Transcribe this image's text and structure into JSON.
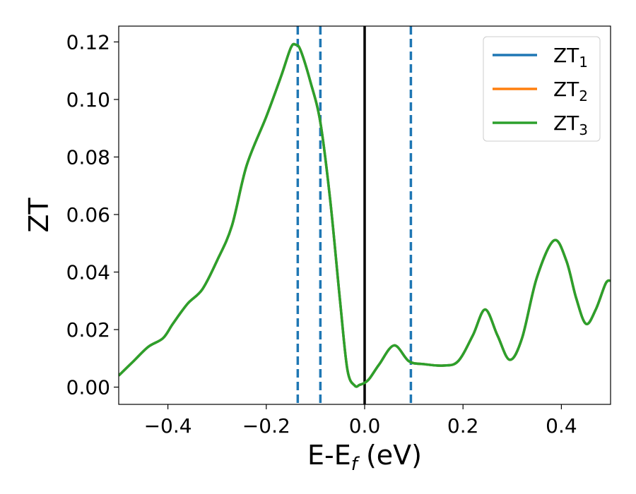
{
  "chart_data": {
    "type": "line",
    "xlabel": "E-E",
    "xlabel_sub": "f",
    "xlabel_unit": " (eV)",
    "ylabel": "ZT",
    "xlim": [
      -0.5,
      0.5
    ],
    "ylim": [
      -0.006,
      0.1255
    ],
    "xticks": [
      -0.4,
      -0.2,
      0.0,
      0.2,
      0.4
    ],
    "xtick_labels": [
      "−0.4",
      "−0.2",
      "0.0",
      "0.2",
      "0.4"
    ],
    "yticks": [
      0.0,
      0.02,
      0.04,
      0.06,
      0.08,
      0.1,
      0.12
    ],
    "ytick_labels": [
      "0.00",
      "0.02",
      "0.04",
      "0.06",
      "0.08",
      "0.10",
      "0.12"
    ],
    "grid": false,
    "legend_position": "top-right",
    "series": [
      {
        "name": "ZT",
        "name_sub": "1",
        "color": "#1f77b4",
        "x": [
          -0.5,
          -0.47,
          -0.44,
          -0.41,
          -0.39,
          -0.36,
          -0.33,
          -0.3,
          -0.27,
          -0.24,
          -0.2,
          -0.17,
          -0.15,
          -0.14,
          -0.13,
          -0.11,
          -0.09,
          -0.07,
          -0.05,
          -0.035,
          -0.02,
          -0.01,
          0.0,
          0.01,
          0.03,
          0.06,
          0.09,
          0.12,
          0.16,
          0.19,
          0.22,
          0.245,
          0.27,
          0.295,
          0.32,
          0.35,
          0.385,
          0.41,
          0.43,
          0.45,
          0.47,
          0.49,
          0.5
        ],
        "y": [
          0.004,
          0.009,
          0.014,
          0.017,
          0.022,
          0.029,
          0.034,
          0.044,
          0.056,
          0.077,
          0.094,
          0.108,
          0.118,
          0.119,
          0.117,
          0.106,
          0.092,
          0.065,
          0.03,
          0.006,
          0.0005,
          0.0008,
          0.0015,
          0.003,
          0.008,
          0.0145,
          0.009,
          0.008,
          0.0075,
          0.009,
          0.018,
          0.027,
          0.018,
          0.0095,
          0.017,
          0.038,
          0.051,
          0.044,
          0.031,
          0.022,
          0.027,
          0.036,
          0.037
        ]
      },
      {
        "name": "ZT",
        "name_sub": "2",
        "color": "#ff7f0e",
        "x": [
          -0.5,
          -0.47,
          -0.44,
          -0.41,
          -0.39,
          -0.36,
          -0.33,
          -0.3,
          -0.27,
          -0.24,
          -0.2,
          -0.17,
          -0.15,
          -0.14,
          -0.13,
          -0.11,
          -0.09,
          -0.07,
          -0.05,
          -0.035,
          -0.02,
          -0.01,
          0.0,
          0.01,
          0.03,
          0.06,
          0.09,
          0.12,
          0.16,
          0.19,
          0.22,
          0.245,
          0.27,
          0.295,
          0.32,
          0.35,
          0.385,
          0.41,
          0.43,
          0.45,
          0.47,
          0.49,
          0.5
        ],
        "y": [
          0.004,
          0.009,
          0.014,
          0.017,
          0.022,
          0.029,
          0.034,
          0.044,
          0.056,
          0.077,
          0.094,
          0.108,
          0.118,
          0.119,
          0.117,
          0.106,
          0.092,
          0.065,
          0.03,
          0.006,
          0.0005,
          0.0008,
          0.0015,
          0.003,
          0.008,
          0.0145,
          0.009,
          0.008,
          0.0075,
          0.009,
          0.018,
          0.027,
          0.018,
          0.0095,
          0.017,
          0.038,
          0.051,
          0.044,
          0.031,
          0.022,
          0.027,
          0.036,
          0.037
        ]
      },
      {
        "name": "ZT",
        "name_sub": "3",
        "color": "#2ca02c",
        "x": [
          -0.5,
          -0.47,
          -0.44,
          -0.41,
          -0.39,
          -0.36,
          -0.33,
          -0.3,
          -0.27,
          -0.24,
          -0.2,
          -0.17,
          -0.15,
          -0.14,
          -0.13,
          -0.11,
          -0.09,
          -0.07,
          -0.05,
          -0.035,
          -0.02,
          -0.01,
          0.0,
          0.01,
          0.03,
          0.06,
          0.09,
          0.12,
          0.16,
          0.19,
          0.22,
          0.245,
          0.27,
          0.295,
          0.32,
          0.35,
          0.385,
          0.41,
          0.43,
          0.45,
          0.47,
          0.49,
          0.5
        ],
        "y": [
          0.004,
          0.009,
          0.014,
          0.017,
          0.022,
          0.029,
          0.034,
          0.044,
          0.056,
          0.077,
          0.094,
          0.108,
          0.118,
          0.119,
          0.117,
          0.106,
          0.092,
          0.065,
          0.03,
          0.006,
          0.0005,
          0.0008,
          0.0015,
          0.003,
          0.008,
          0.0145,
          0.009,
          0.008,
          0.0075,
          0.009,
          0.018,
          0.027,
          0.018,
          0.0095,
          0.017,
          0.038,
          0.051,
          0.044,
          0.031,
          0.022,
          0.027,
          0.036,
          0.037
        ]
      }
    ],
    "vlines": [
      {
        "x": -0.136,
        "style": "dashed",
        "color": "#1f77b4"
      },
      {
        "x": -0.09,
        "style": "dashed",
        "color": "#1f77b4"
      },
      {
        "x": 0.0,
        "style": "solid",
        "color": "#000000"
      },
      {
        "x": 0.094,
        "style": "dashed",
        "color": "#1f77b4"
      }
    ]
  }
}
